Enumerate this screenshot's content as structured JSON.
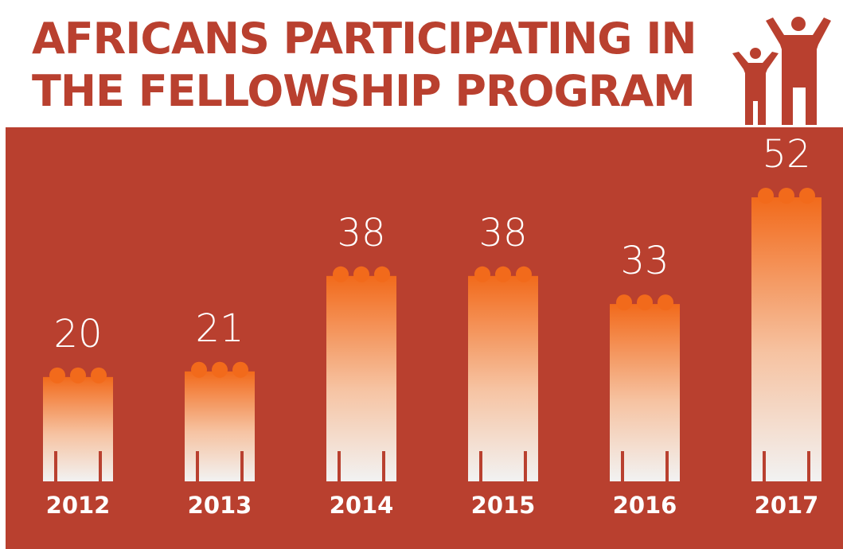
{
  "title": {
    "line1": "AFRICANS PARTICIPATING IN",
    "line2": "THE FELLOWSHIP PROGRAM"
  },
  "colors": {
    "background_panel": "#b9402f",
    "title": "#b9402f",
    "people_top": "#f26a1b",
    "people_bottom": "#f2f2f2",
    "text_on_panel": "#ffffff"
  },
  "icons": {
    "celebrating_people": "celebrating-people-icon"
  },
  "chart_data": {
    "type": "bar",
    "title": "AFRICANS PARTICIPATING IN THE FELLOWSHIP PROGRAM",
    "xlabel": "",
    "ylabel": "",
    "categories": [
      "2012",
      "2013",
      "2014",
      "2015",
      "2016",
      "2017"
    ],
    "values": [
      20,
      21,
      38,
      38,
      33,
      52
    ],
    "ylim": [
      0,
      52
    ],
    "grid": false,
    "legend": "none",
    "data_labels": true
  }
}
